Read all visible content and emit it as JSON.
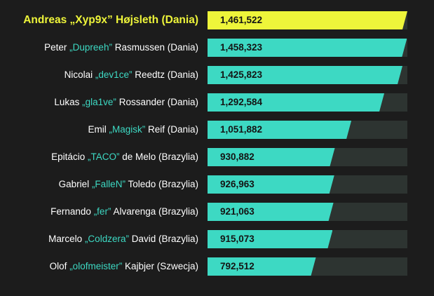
{
  "colors": {
    "background": "#1c1c1c",
    "bar": "#3dd9c3",
    "highlight": "#eef53a",
    "track": "#2d3431",
    "nickname": "#3dd9c3"
  },
  "chart_data": {
    "type": "bar",
    "orientation": "horizontal",
    "title": "",
    "xlabel": "",
    "ylabel": "",
    "xlim": [
      0,
      1461522
    ],
    "grid": false,
    "categories": [
      "Andreas „Xyp9x” Højsleth (Dania)",
      "Peter „Dupreeh” Rasmussen (Dania)",
      "Nicolai „dev1ce” Reedtz (Dania)",
      "Lukas „gla1ve” Rossander (Dania)",
      "Emil „Magisk” Reif (Dania)",
      "Epitácio „TACO” de Melo (Brazylia)",
      "Gabriel „FalleN” Toledo (Brazylia)",
      "Fernando „fer” Alvarenga (Brazylia)",
      "Marcelo „Coldzera” David (Brazylia)",
      "Olof „olofmeister” Kajbjer (Szwecja)"
    ],
    "values": [
      1461522,
      1458323,
      1425823,
      1292584,
      1051882,
      930882,
      926963,
      921063,
      915073,
      792512
    ],
    "players": [
      {
        "first": "Andreas ",
        "nick": "„Xyp9x”",
        "rest": " Højsleth (Dania)",
        "value": 1461522,
        "value_label": "1,461,522",
        "highlight": true
      },
      {
        "first": "Peter ",
        "nick": "„Dupreeh”",
        "rest": " Rasmussen (Dania)",
        "value": 1458323,
        "value_label": "1,458,323",
        "highlight": false
      },
      {
        "first": "Nicolai ",
        "nick": "„dev1ce”",
        "rest": " Reedtz (Dania)",
        "value": 1425823,
        "value_label": "1,425,823",
        "highlight": false
      },
      {
        "first": "Lukas ",
        "nick": "„gla1ve”",
        "rest": " Rossander (Dania)",
        "value": 1292584,
        "value_label": "1,292,584",
        "highlight": false
      },
      {
        "first": "Emil ",
        "nick": "„Magisk”",
        "rest": " Reif (Dania)",
        "value": 1051882,
        "value_label": "1,051,882",
        "highlight": false
      },
      {
        "first": "Epitácio ",
        "nick": "„TACO”",
        "rest": " de Melo (Brazylia)",
        "value": 930882,
        "value_label": "930,882",
        "highlight": false
      },
      {
        "first": "Gabriel ",
        "nick": "„FalleN”",
        "rest": " Toledo (Brazylia)",
        "value": 926963,
        "value_label": "926,963",
        "highlight": false
      },
      {
        "first": "Fernando ",
        "nick": "„fer”",
        "rest": " Alvarenga (Brazylia)",
        "value": 921063,
        "value_label": "921,063",
        "highlight": false
      },
      {
        "first": "Marcelo ",
        "nick": "„Coldzera”",
        "rest": " David (Brazylia)",
        "value": 915073,
        "value_label": "915,073",
        "highlight": false
      },
      {
        "first": "Olof ",
        "nick": "„olofmeister”",
        "rest": " Kajbjer (Szwecja)",
        "value": 792512,
        "value_label": "792,512",
        "highlight": false
      }
    ]
  }
}
